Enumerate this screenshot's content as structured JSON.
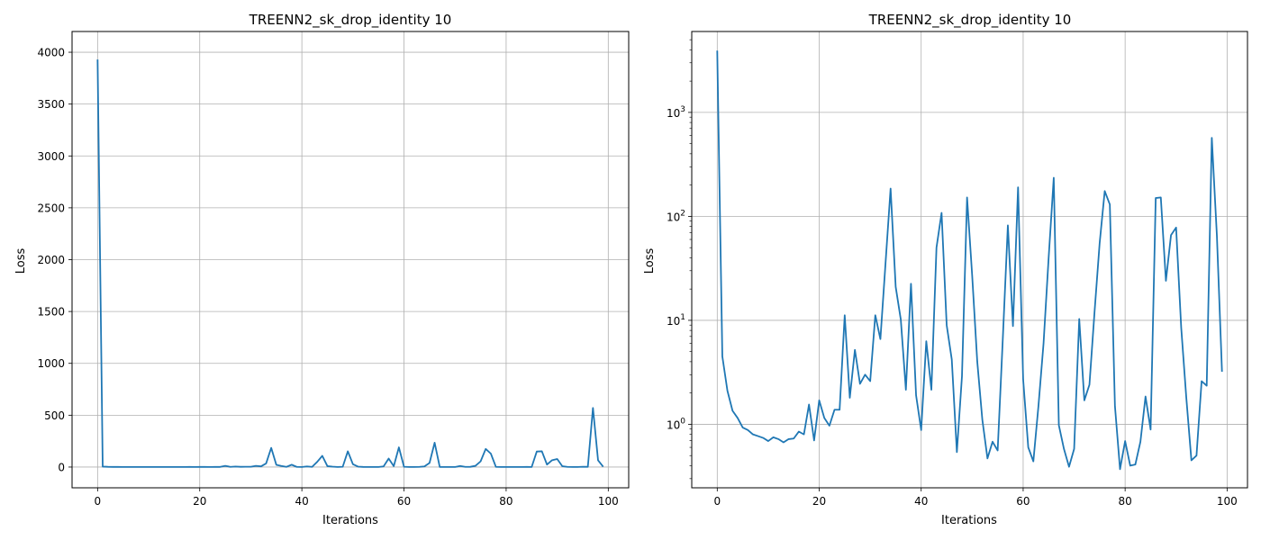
{
  "chart_data": [
    {
      "type": "line",
      "scale": "linear",
      "title": "TREENN2_sk_drop_identity 10",
      "xlabel": "Iterations",
      "ylabel": "Loss",
      "xlim": [
        -5,
        104
      ],
      "ylim": [
        -200,
        4200
      ],
      "xticks": [
        0,
        20,
        40,
        60,
        80,
        100
      ],
      "yticks": [
        0,
        500,
        1000,
        1500,
        2000,
        2500,
        3000,
        3500,
        4000
      ],
      "grid": true,
      "series": [
        {
          "color": "#1f77b4",
          "x": [
            0,
            1,
            2,
            3,
            4,
            5,
            6,
            7,
            8,
            9,
            10,
            11,
            12,
            13,
            14,
            15,
            16,
            17,
            18,
            19,
            20,
            21,
            22,
            23,
            24,
            25,
            26,
            27,
            28,
            29,
            30,
            31,
            32,
            33,
            34,
            35,
            36,
            37,
            38,
            39,
            40,
            41,
            42,
            43,
            44,
            45,
            46,
            47,
            48,
            49,
            50,
            51,
            52,
            53,
            54,
            55,
            56,
            57,
            58,
            59,
            60,
            61,
            62,
            63,
            64,
            65,
            66,
            67,
            68,
            69,
            70,
            71,
            72,
            73,
            74,
            75,
            76,
            77,
            78,
            79,
            80,
            81,
            82,
            83,
            84,
            85,
            86,
            87,
            88,
            89,
            90,
            91,
            92,
            93,
            94,
            95,
            96,
            97,
            98,
            99
          ],
          "y": [
            3930,
            4.5,
            2.1,
            1.35,
            1.15,
            0.93,
            0.88,
            0.8,
            0.77,
            0.74,
            0.69,
            0.75,
            0.72,
            0.67,
            0.72,
            0.73,
            0.85,
            0.8,
            1.55,
            0.7,
            1.7,
            1.15,
            0.97,
            1.38,
            1.38,
            11.2,
            1.8,
            5.2,
            2.45,
            3.0,
            2.6,
            11.2,
            6.6,
            35,
            185,
            21,
            10.2,
            2.15,
            22.5,
            1.9,
            0.88,
            6.3,
            2.15,
            50,
            108,
            9,
            4.2,
            0.54,
            2.9,
            152,
            27,
            4,
            1.1,
            0.47,
            0.68,
            0.56,
            6.5,
            82,
            8.8,
            190,
            2.7,
            0.6,
            0.44,
            1.5,
            6,
            40,
            235,
            0.98,
            0.58,
            0.39,
            0.58,
            10.3,
            1.7,
            2.4,
            12,
            55,
            175,
            130,
            1.5,
            0.37,
            0.69,
            0.4,
            0.41,
            0.68,
            1.85,
            0.89,
            150,
            152,
            24,
            66,
            78,
            8.5,
            1.8,
            0.45,
            0.5,
            2.6,
            2.35,
            570,
            65,
            3.2
          ]
        }
      ]
    },
    {
      "type": "line",
      "scale": "log",
      "title": "TREENN2_sk_drop_identity 10",
      "xlabel": "Iterations",
      "ylabel": "Loss",
      "xlim": [
        -5,
        104
      ],
      "ylim": [
        0.245,
        6000
      ],
      "xticks": [
        0,
        20,
        40,
        60,
        80,
        100
      ],
      "yticks": [
        1,
        10,
        100,
        1000
      ],
      "ytick_labels": [
        {
          "base": "10",
          "exp": "0"
        },
        {
          "base": "10",
          "exp": "1"
        },
        {
          "base": "10",
          "exp": "2"
        },
        {
          "base": "10",
          "exp": "3"
        }
      ],
      "grid": true,
      "series": [
        {
          "color": "#1f77b4",
          "x": [
            0,
            1,
            2,
            3,
            4,
            5,
            6,
            7,
            8,
            9,
            10,
            11,
            12,
            13,
            14,
            15,
            16,
            17,
            18,
            19,
            20,
            21,
            22,
            23,
            24,
            25,
            26,
            27,
            28,
            29,
            30,
            31,
            32,
            33,
            34,
            35,
            36,
            37,
            38,
            39,
            40,
            41,
            42,
            43,
            44,
            45,
            46,
            47,
            48,
            49,
            50,
            51,
            52,
            53,
            54,
            55,
            56,
            57,
            58,
            59,
            60,
            61,
            62,
            63,
            64,
            65,
            66,
            67,
            68,
            69,
            70,
            71,
            72,
            73,
            74,
            75,
            76,
            77,
            78,
            79,
            80,
            81,
            82,
            83,
            84,
            85,
            86,
            87,
            88,
            89,
            90,
            91,
            92,
            93,
            94,
            95,
            96,
            97,
            98,
            99
          ],
          "y": [
            3930,
            4.5,
            2.1,
            1.35,
            1.15,
            0.93,
            0.88,
            0.8,
            0.77,
            0.74,
            0.69,
            0.75,
            0.72,
            0.67,
            0.72,
            0.73,
            0.85,
            0.8,
            1.55,
            0.7,
            1.7,
            1.15,
            0.97,
            1.38,
            1.38,
            11.2,
            1.8,
            5.2,
            2.45,
            3.0,
            2.6,
            11.2,
            6.6,
            35,
            185,
            21,
            10.2,
            2.15,
            22.5,
            1.9,
            0.88,
            6.3,
            2.15,
            50,
            108,
            9,
            4.2,
            0.54,
            2.9,
            152,
            27,
            4,
            1.1,
            0.47,
            0.68,
            0.56,
            6.5,
            82,
            8.8,
            190,
            2.7,
            0.6,
            0.44,
            1.5,
            6,
            40,
            235,
            0.98,
            0.58,
            0.39,
            0.58,
            10.3,
            1.7,
            2.4,
            12,
            55,
            175,
            130,
            1.5,
            0.37,
            0.69,
            0.4,
            0.41,
            0.68,
            1.85,
            0.89,
            150,
            152,
            24,
            66,
            78,
            8.5,
            1.8,
            0.45,
            0.5,
            2.6,
            2.35,
            570,
            65,
            3.2
          ]
        }
      ]
    }
  ]
}
